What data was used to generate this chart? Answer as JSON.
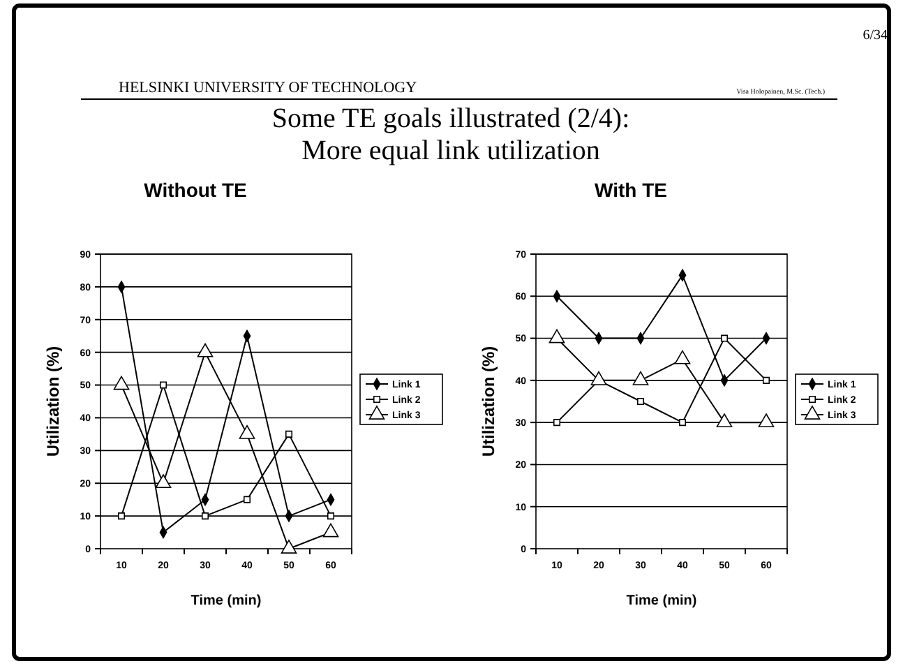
{
  "chart_data": [
    {
      "type": "other",
      "title": "Some TE goals illustrated (2/4):",
      "subtitle": "More equal link utilization",
      "annotations": [
        "HELSINKI UNIVERSITY OF TECHNOLOGY",
        "Visa Holopainen, M.Sc. (Tech.)",
        "6/34"
      ]
    },
    {
      "type": "line",
      "title": "Without TE",
      "xlabel": "Time (min)",
      "ylabel": "Utilization (%)",
      "categories": [
        "10",
        "20",
        "30",
        "40",
        "50",
        "60"
      ],
      "ylim": [
        0,
        90
      ],
      "yticks": [
        0,
        10,
        20,
        30,
        40,
        50,
        60,
        70,
        80,
        90
      ],
      "grid": "y",
      "legend": "right",
      "series": [
        {
          "name": "Link 1",
          "color": "#000000",
          "marker": "diamond",
          "values": [
            80,
            5,
            15,
            65,
            10,
            15
          ]
        },
        {
          "name": "Link 2",
          "color": "#000000",
          "marker": "square",
          "values": [
            10,
            50,
            10,
            15,
            35,
            10
          ]
        },
        {
          "name": "Link 3",
          "color": "#000000",
          "marker": "triangle",
          "values": [
            50,
            20,
            60,
            35,
            0,
            5
          ]
        }
      ]
    },
    {
      "type": "line",
      "title": "With TE",
      "xlabel": "Time (min)",
      "ylabel": "Utilization (%)",
      "categories": [
        "10",
        "20",
        "30",
        "40",
        "50",
        "60"
      ],
      "ylim": [
        0,
        70
      ],
      "yticks": [
        0,
        10,
        20,
        30,
        40,
        50,
        60,
        70
      ],
      "grid": "y",
      "legend": "right",
      "series": [
        {
          "name": "Link 1",
          "color": "#000000",
          "marker": "diamond",
          "values": [
            60,
            50,
            50,
            65,
            40,
            50
          ]
        },
        {
          "name": "Link 2",
          "color": "#000000",
          "marker": "square",
          "values": [
            30,
            40,
            35,
            30,
            50,
            40
          ]
        },
        {
          "name": "Link 3",
          "color": "#000000",
          "marker": "triangle",
          "values": [
            50,
            40,
            40,
            45,
            30,
            30
          ]
        }
      ]
    }
  ]
}
